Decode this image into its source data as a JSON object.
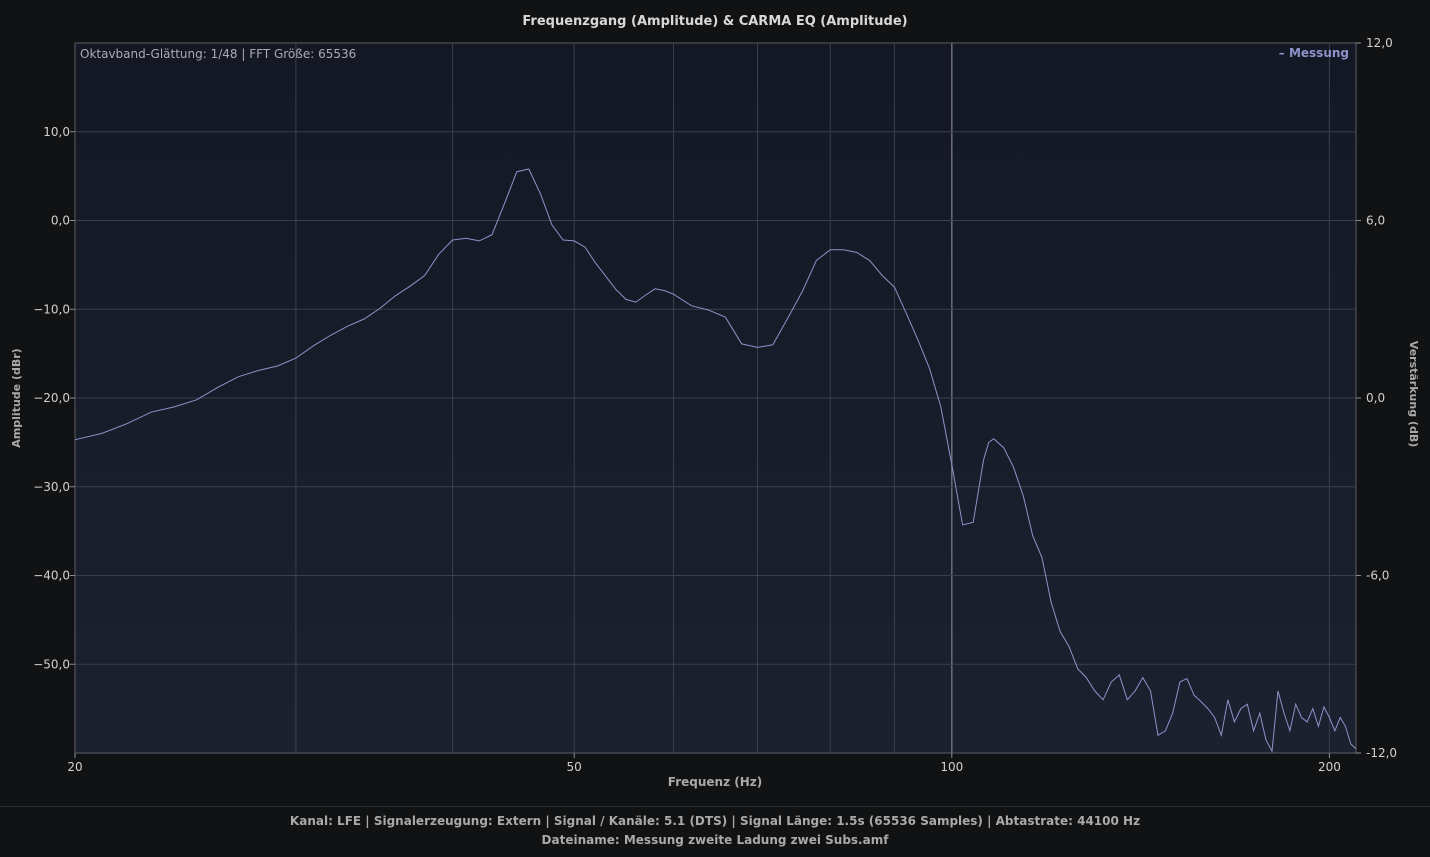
{
  "title": "Frequenzgang (Amplitude) & CARMA EQ (Amplitude)",
  "info_text": "Oktavband-Glättung: 1/48 | FFT Größe: 65536",
  "footer": {
    "line1": "Kanal: LFE  |  Signalerzeugung: Extern   |  Signal / Kanäle: 5.1 (DTS)  |  Signal Länge: 1.5s (65536 Samples)  |  Abtastrate: 44100 Hz",
    "line2": "Dateiname: Messung zweite Ladung zwei Subs.amf"
  },
  "colors": {
    "background": "#111213",
    "plot_bg_top": "#141824",
    "plot_bg_bottom": "#1c2130",
    "line": "#8d93c9",
    "grid": "#3b3f4c"
  },
  "chart_data": {
    "type": "line",
    "title": "Frequenzgang (Amplitude) & CARMA EQ (Amplitude)",
    "xlabel": "Frequenz (Hz)",
    "ylabel": "Amplitude (dBr)",
    "y2label": "Verstärkung (dB)",
    "x_scale": "log",
    "xlim": [
      20,
      210
    ],
    "ylim": [
      -60,
      20
    ],
    "y2lim": [
      -12,
      12
    ],
    "x_ticks": [
      20,
      50,
      100,
      200
    ],
    "x_tick_labels": [
      "20",
      "50",
      "100",
      "200"
    ],
    "y_ticks": [
      10,
      0,
      -10,
      -20,
      -30,
      -40,
      -50
    ],
    "y_tick_labels": [
      "10,0",
      "0,0",
      "−10,0",
      "−20,0",
      "−30,0",
      "−40,0",
      "−50,0"
    ],
    "y2_ticks": [
      12,
      6,
      0,
      -6,
      -12
    ],
    "y2_tick_labels": [
      "12,0",
      "6,0",
      "0,0",
      "-6,0",
      "-12,0"
    ],
    "grid": true,
    "legend": {
      "position": "top-right",
      "label": "– Messung"
    },
    "series": [
      {
        "name": "Messung",
        "x": [
          20,
          21,
          22,
          23,
          24,
          25,
          26,
          27,
          28,
          29,
          30,
          31,
          32,
          33,
          34,
          35,
          36,
          37,
          38,
          39,
          40,
          41,
          42,
          43,
          44,
          45,
          46,
          47,
          48,
          49,
          50,
          51,
          52,
          53,
          54,
          55,
          56,
          57,
          58,
          59,
          60,
          62,
          64,
          66,
          68,
          70,
          72,
          74,
          76,
          78,
          80,
          82,
          84,
          86,
          88,
          90,
          92,
          94,
          96,
          98,
          100,
          102,
          104,
          106,
          107,
          108,
          110,
          112,
          114,
          116,
          118,
          120,
          122,
          124,
          126,
          128,
          130,
          132,
          134,
          136,
          138,
          140,
          142,
          144,
          146,
          148,
          150,
          152,
          154,
          156,
          158,
          160,
          162,
          164,
          166,
          168,
          170,
          172,
          174,
          176,
          178,
          180,
          182,
          184,
          186,
          188,
          190,
          192,
          194,
          196,
          198,
          200,
          202,
          204,
          206,
          208,
          210
        ],
        "y": [
          -24.7,
          -24.0,
          -22.9,
          -21.6,
          -21.0,
          -20.2,
          -18.8,
          -17.6,
          -16.9,
          -16.4,
          -15.5,
          -14.1,
          -12.9,
          -11.9,
          -11.1,
          -9.9,
          -8.5,
          -7.4,
          -6.2,
          -3.8,
          -2.2,
          -2.0,
          -2.3,
          -1.6,
          1.9,
          5.5,
          5.8,
          3.0,
          -0.5,
          -2.2,
          -2.3,
          -3.0,
          -4.8,
          -6.3,
          -7.8,
          -8.9,
          -9.2,
          -8.4,
          -7.7,
          -7.9,
          -8.3,
          -9.6,
          -10.1,
          -10.9,
          -13.9,
          -14.3,
          -14.0,
          -11.0,
          -8.0,
          -4.5,
          -3.3,
          -3.3,
          -3.6,
          -4.5,
          -6.2,
          -7.5,
          -10.5,
          -13.5,
          -16.7,
          -21.0,
          -27.5,
          -34.3,
          -34.0,
          -27.0,
          -25.0,
          -24.6,
          -25.6,
          -27.8,
          -31.0,
          -35.5,
          -38.0,
          -43.0,
          -46.3,
          -48.0,
          -50.5,
          -51.5,
          -53.0,
          -54.0,
          -52.0,
          -51.2,
          -54.0,
          -53.0,
          -51.5,
          -53.0,
          -58.0,
          -57.5,
          -55.5,
          -52.0,
          -51.6,
          -53.5,
          -54.2,
          -55.0,
          -56.0,
          -58.0,
          -54.0,
          -56.5,
          -55.0,
          -54.5,
          -57.5,
          -55.5,
          -58.5,
          -59.8,
          -53.0,
          -55.5,
          -57.5,
          -54.5,
          -56.0,
          -56.5,
          -55.0,
          -57.0,
          -54.8,
          -56.0,
          -57.5,
          -56.0,
          -57.0,
          -59.0,
          -59.5
        ]
      }
    ]
  }
}
